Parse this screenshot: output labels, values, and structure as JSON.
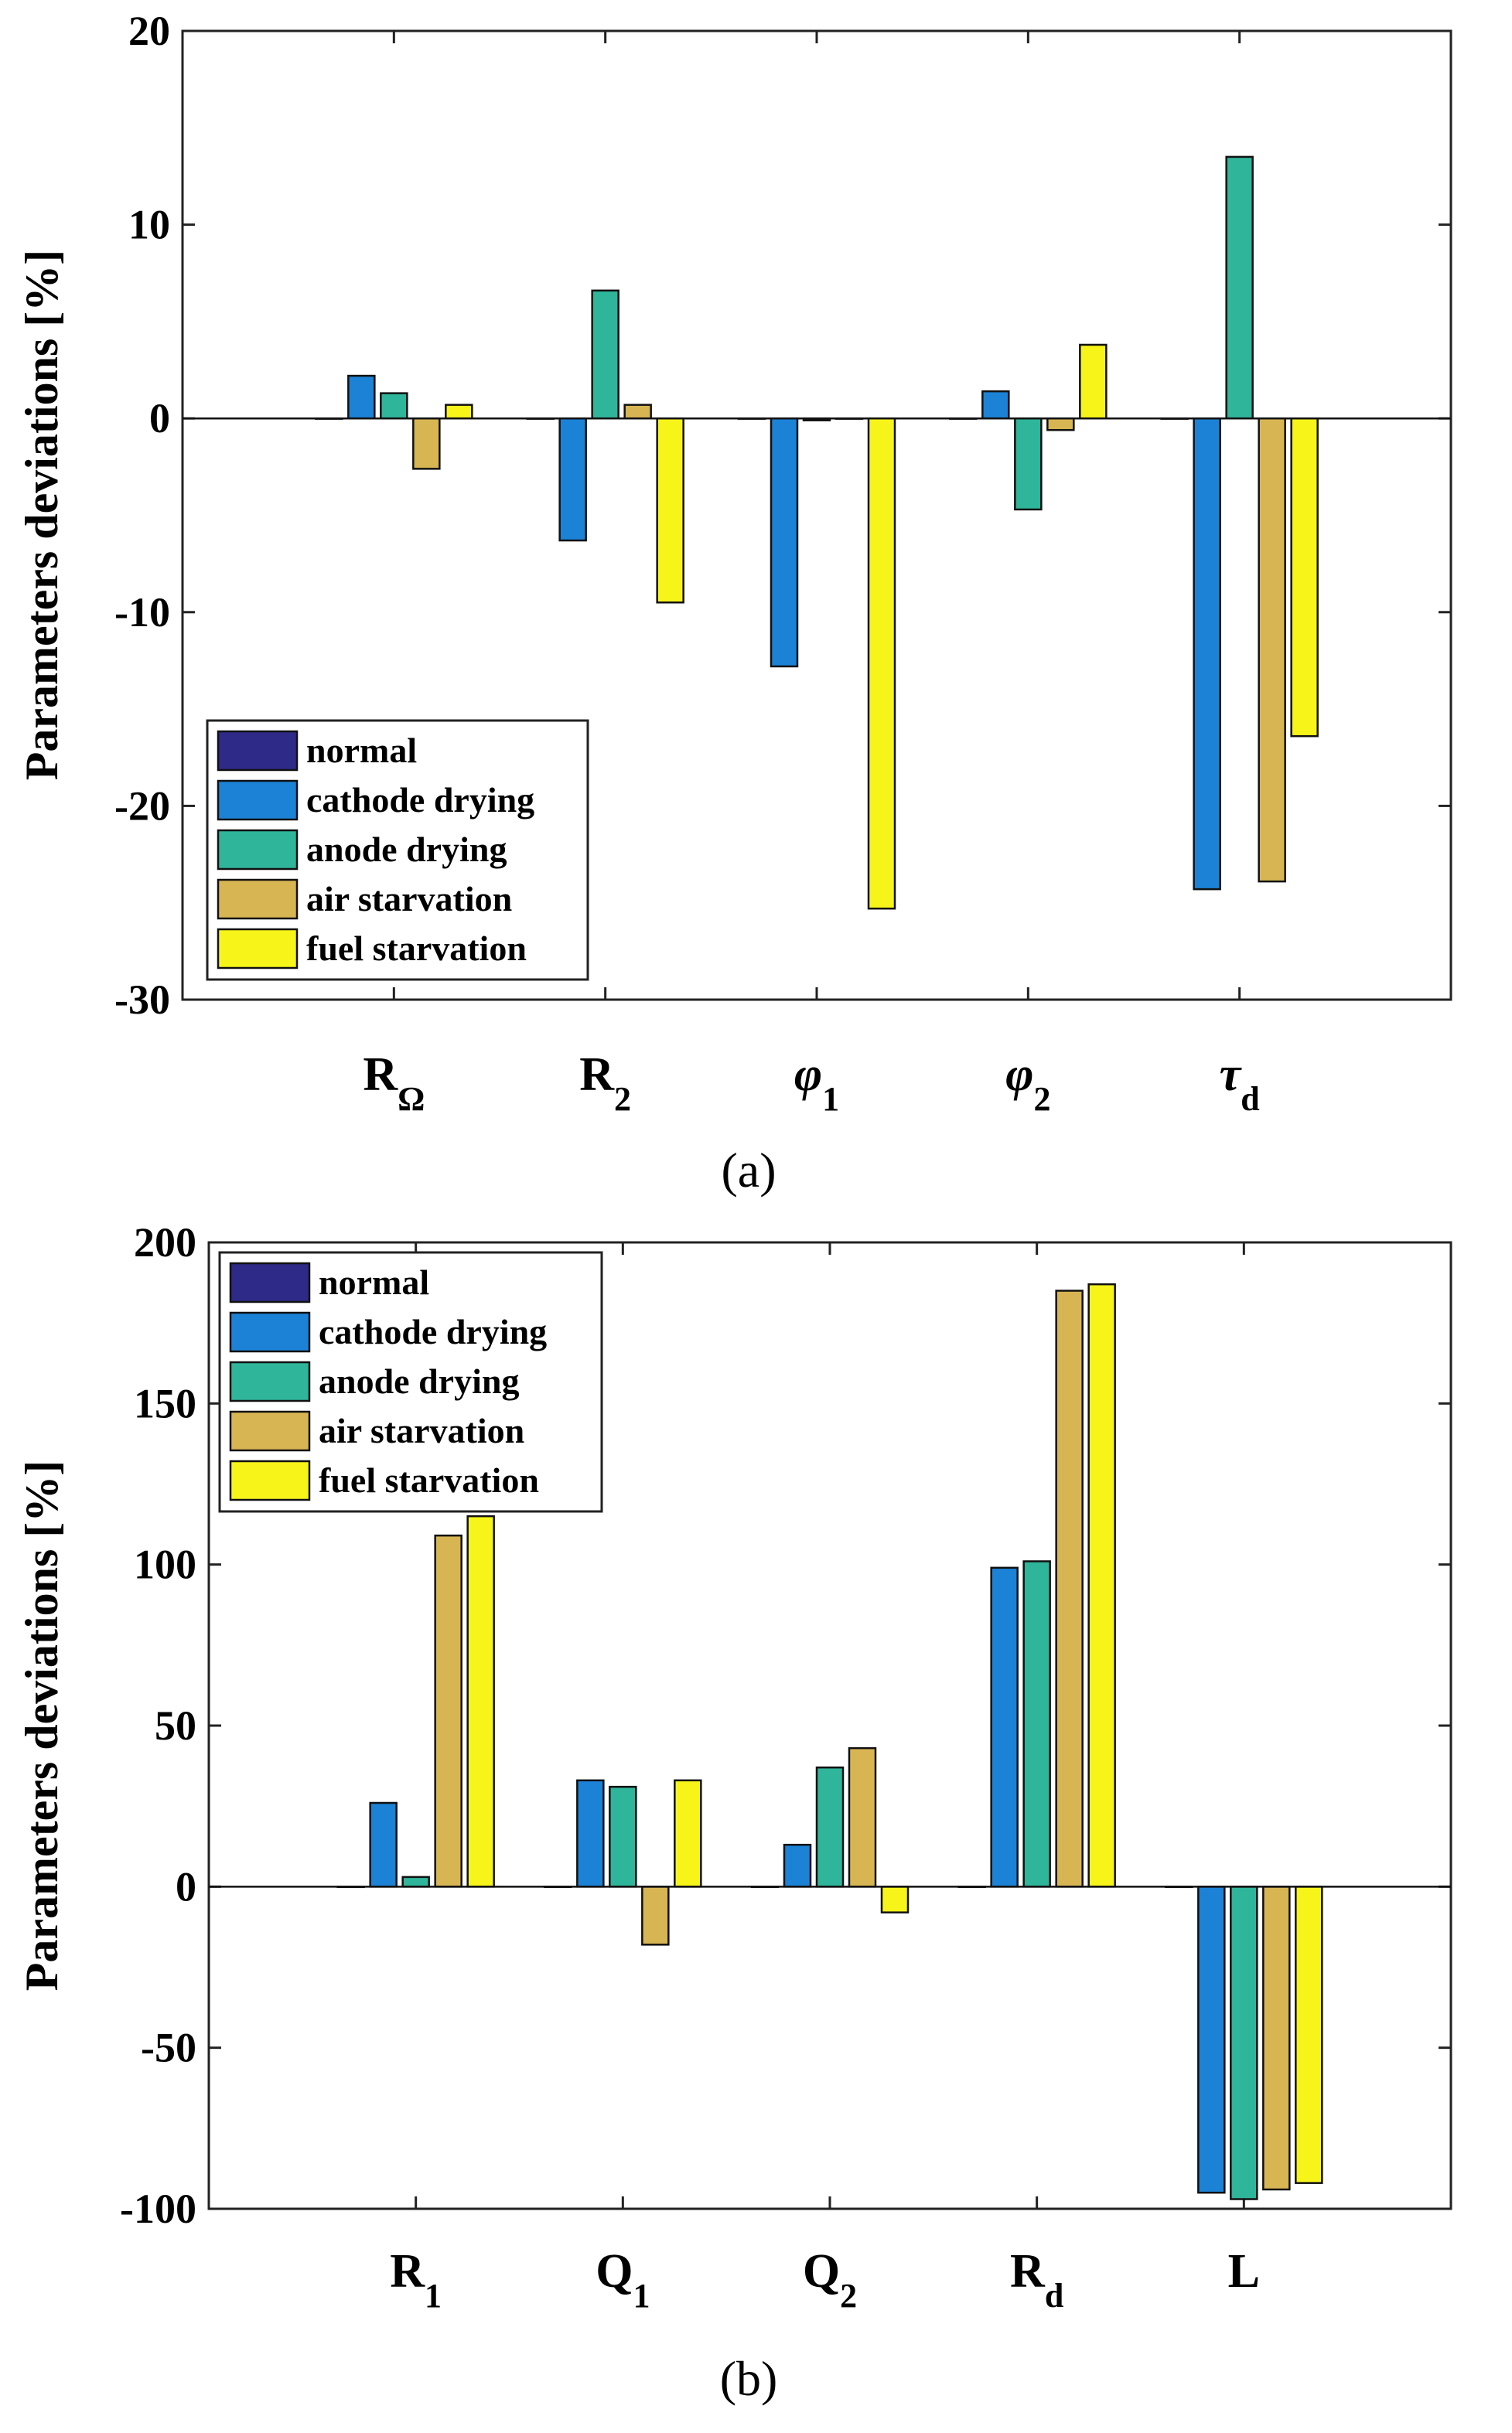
{
  "colors": {
    "normal": "#2e2a87",
    "cathode drying": "#1b82d6",
    "anode drying": "#2fb59a",
    "air starvation": "#d8b553",
    "fuel starvation": "#f7f41a"
  },
  "chart_data": [
    {
      "type": "bar",
      "caption": "(a)",
      "ylabel": "Parameters deviations [%]",
      "ylim": [
        -30,
        20
      ],
      "yticks": [
        "20",
        "10",
        "0",
        "-10",
        "-20",
        "-30"
      ],
      "legend_position": "bottom-left",
      "categories": [
        {
          "base": "R",
          "sub": "Ω",
          "italic": false
        },
        {
          "base": "R",
          "sub": "2",
          "italic": false
        },
        {
          "base": "φ",
          "sub": "1",
          "italic": true
        },
        {
          "base": "φ",
          "sub": "2",
          "italic": true
        },
        {
          "base": "τ",
          "sub": "d",
          "italic": true
        }
      ],
      "series": [
        {
          "name": "normal",
          "values": [
            0,
            0,
            0,
            0,
            0
          ]
        },
        {
          "name": "cathode drying",
          "values": [
            2.2,
            -6.3,
            -12.8,
            1.4,
            -24.3
          ]
        },
        {
          "name": "anode drying",
          "values": [
            1.3,
            6.6,
            -0.1,
            -4.7,
            13.5
          ]
        },
        {
          "name": "air starvation",
          "values": [
            -2.6,
            0.7,
            0,
            -0.6,
            -23.9
          ]
        },
        {
          "name": "fuel starvation",
          "values": [
            0.7,
            -9.5,
            -25.3,
            3.8,
            -16.4
          ]
        }
      ]
    },
    {
      "type": "bar",
      "caption": "(b)",
      "ylabel": "Parameters deviations [%]",
      "ylim": [
        -100,
        200
      ],
      "yticks": [
        "200",
        "150",
        "100",
        "50",
        "0",
        "-50",
        "-100"
      ],
      "legend_position": "top-left",
      "categories": [
        {
          "base": "R",
          "sub": "1",
          "italic": false
        },
        {
          "base": "Q",
          "sub": "1",
          "italic": false
        },
        {
          "base": "Q",
          "sub": "2",
          "italic": false
        },
        {
          "base": "R",
          "sub": "d",
          "italic": false
        },
        {
          "base": "L",
          "sub": "",
          "italic": false
        }
      ],
      "series": [
        {
          "name": "normal",
          "values": [
            0,
            0,
            0,
            0,
            0
          ]
        },
        {
          "name": "cathode drying",
          "values": [
            26,
            33,
            13,
            99,
            -95
          ]
        },
        {
          "name": "anode drying",
          "values": [
            3,
            31,
            37,
            101,
            -97
          ]
        },
        {
          "name": "air starvation",
          "values": [
            109,
            -18,
            43,
            185,
            -94
          ]
        },
        {
          "name": "fuel starvation",
          "values": [
            115,
            33,
            -8,
            187,
            -92
          ]
        }
      ]
    }
  ]
}
